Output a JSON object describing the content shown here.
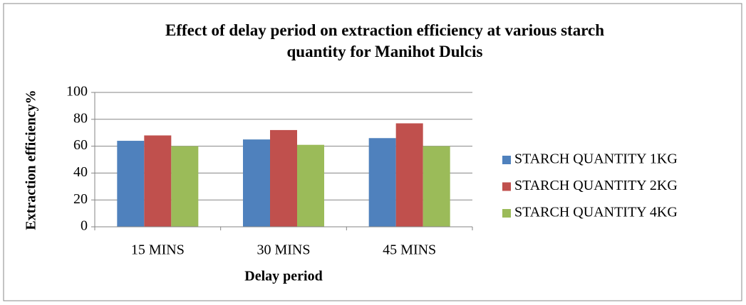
{
  "chart_data": {
    "type": "bar",
    "title": "Effect of delay period on extraction efficiency at various starch quantity for Manihot Dulcis",
    "x_label": "Delay period",
    "y_label": "Extraction efficiency%",
    "categories": [
      "15 MINS",
      "30 MINS",
      "45 MINS"
    ],
    "series": [
      {
        "name": "STARCH QUANTITY 1KG",
        "color": "#4f81bd",
        "values": [
          64,
          65,
          66
        ]
      },
      {
        "name": "STARCH QUANTITY 2KG",
        "color": "#c0504d",
        "values": [
          68,
          72,
          77
        ]
      },
      {
        "name": "STARCH QUANTITY 4KG",
        "color": "#9bbb59",
        "values": [
          60,
          61,
          60
        ]
      }
    ],
    "ylim": [
      0,
      100
    ],
    "yticks": [
      0,
      20,
      40,
      60,
      80,
      100
    ],
    "grid": true,
    "legend": "right"
  }
}
